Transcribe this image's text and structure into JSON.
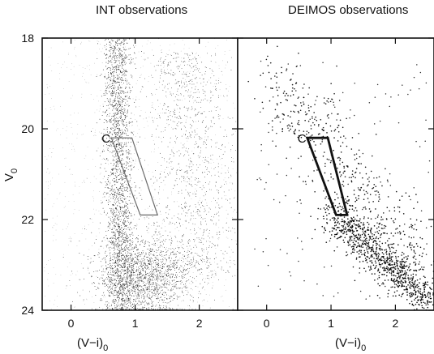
{
  "panels": {
    "left_title": "INT observations",
    "right_title": "DEIMOS observations"
  },
  "axes": {
    "xlabel_base": "(V−i)",
    "xlabel_sub": "0",
    "ylabel_base": "V",
    "ylabel_sub": "0"
  },
  "chart_data": [
    {
      "type": "scatter",
      "title": "INT observations",
      "xlabel": "(V−i)0",
      "ylabel": "V0",
      "xlim": [
        -0.45,
        2.6
      ],
      "ylim": [
        24,
        18
      ],
      "y_inverted": true,
      "xticks": [
        0,
        1,
        2
      ],
      "yticks": [
        18,
        20,
        22,
        24
      ],
      "point_color": "#000000",
      "density_note": "very dense color–magnitude diagram",
      "features": [
        {
          "name": "bright vertical band",
          "x_range": [
            0.55,
            0.95
          ],
          "y_range": [
            18,
            22
          ]
        },
        {
          "name": "main dense clump",
          "x_range": [
            0.9,
            2.3
          ],
          "y_range": [
            21.5,
            24
          ]
        },
        {
          "name": "red giant region",
          "x_range": [
            1.3,
            2.5
          ],
          "y_range": [
            18.5,
            23
          ]
        }
      ],
      "selection_box": {
        "label": "C",
        "vertices": [
          [
            0.63,
            20.2
          ],
          [
            0.95,
            20.2
          ],
          [
            1.35,
            21.9
          ],
          [
            1.08,
            21.9
          ]
        ]
      }
    },
    {
      "type": "scatter",
      "title": "DEIMOS observations",
      "xlabel": "(V−i)0",
      "ylabel": "",
      "xlim": [
        -0.45,
        2.6
      ],
      "ylim": [
        24,
        18
      ],
      "y_inverted": true,
      "xticks": [
        0,
        1,
        2
      ],
      "yticks": [
        18,
        20,
        22,
        24
      ],
      "point_color": "#000000",
      "features": [
        {
          "name": "sparse upper stars",
          "x_range": [
            0.0,
            2.5
          ],
          "y_range": [
            18.5,
            21.5
          ]
        },
        {
          "name": "dense red giant branch",
          "x_range": [
            1.0,
            2.6
          ],
          "y_range": [
            21.5,
            24
          ]
        }
      ],
      "selection_box": {
        "label": "C",
        "vertices": [
          [
            0.63,
            20.2
          ],
          [
            0.95,
            20.2
          ],
          [
            1.25,
            21.9
          ],
          [
            1.08,
            21.9
          ]
        ]
      }
    }
  ]
}
